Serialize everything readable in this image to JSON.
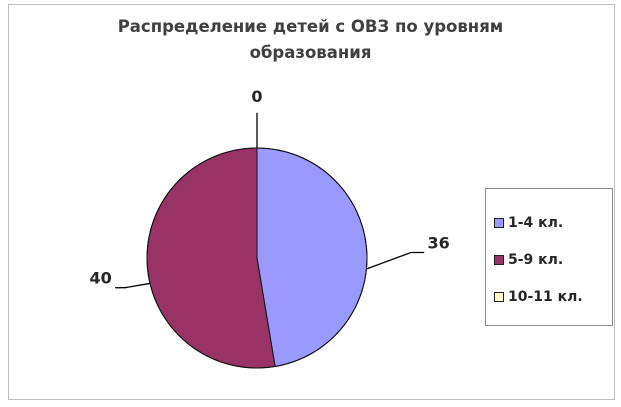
{
  "chart_data": {
    "type": "pie",
    "title": "Распределение детей с ОВЗ по уровням образования",
    "title_lines": [
      "Распределение детей с ОВЗ по уровням",
      "образования"
    ],
    "categories": [
      "1-4 кл.",
      "5-9 кл.",
      "10-11 кл."
    ],
    "values": [
      36,
      40,
      0
    ],
    "colors": [
      "#9999ff",
      "#993366",
      "#ffffcc"
    ],
    "data_labels": [
      "36",
      "40",
      "0"
    ],
    "legend_position": "right"
  }
}
